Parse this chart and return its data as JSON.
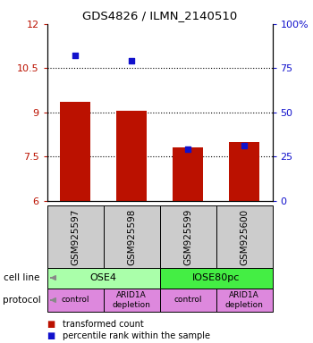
{
  "title": "GDS4826 / ILMN_2140510",
  "samples": [
    "GSM925597",
    "GSM925598",
    "GSM925599",
    "GSM925600"
  ],
  "bar_values": [
    9.35,
    9.05,
    7.82,
    7.98
  ],
  "percentile_values": [
    82,
    79,
    29,
    31
  ],
  "ylim_left": [
    6,
    12
  ],
  "ylim_right": [
    0,
    100
  ],
  "yticks_left": [
    6,
    7.5,
    9,
    10.5,
    12
  ],
  "yticks_right": [
    0,
    25,
    50,
    75,
    100
  ],
  "ytick_labels_left": [
    "6",
    "7.5",
    "9",
    "10.5",
    "12"
  ],
  "ytick_labels_right": [
    "0",
    "25",
    "50",
    "75",
    "100%"
  ],
  "bar_color": "#bb1100",
  "dot_color": "#1111cc",
  "cell_line_row": [
    [
      "OSE4",
      2
    ],
    [
      "IOSE80pc",
      2
    ]
  ],
  "cell_line_colors": [
    "#aaffaa",
    "#44ee44"
  ],
  "protocol_row": [
    "control",
    "ARID1A\ndepletion",
    "control",
    "ARID1A\ndepletion"
  ],
  "protocol_color": "#dd88dd",
  "sample_box_color": "#cccccc",
  "legend_red_label": "transformed count",
  "legend_blue_label": "percentile rank within the sample",
  "dotted_yticks": [
    7.5,
    9.0,
    10.5
  ],
  "bar_width": 0.55
}
